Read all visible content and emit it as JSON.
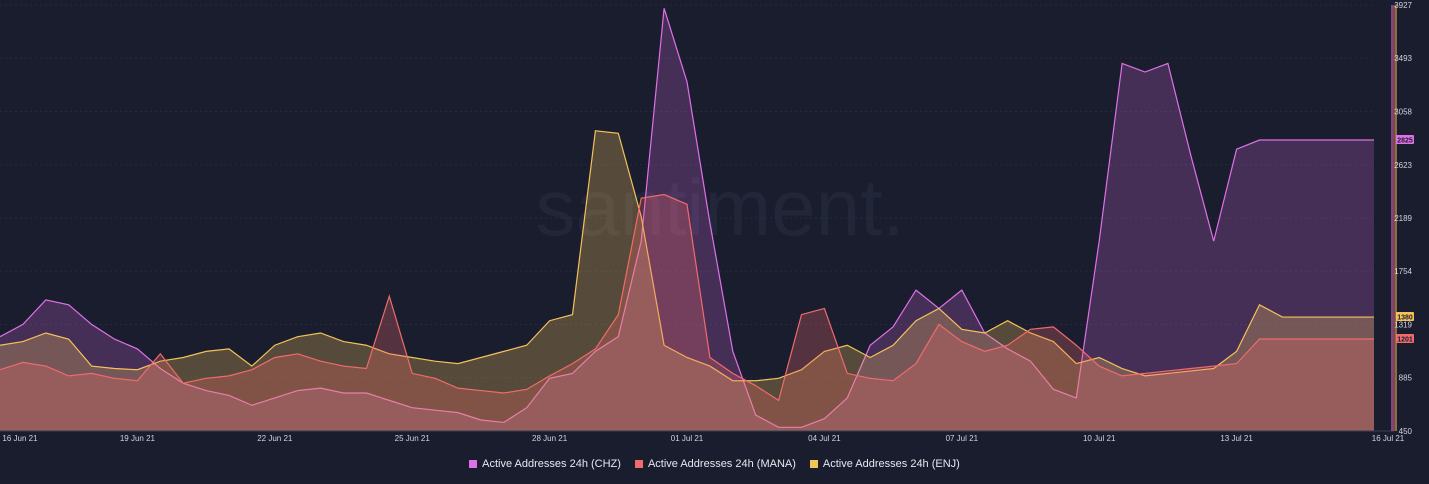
{
  "chart_data": {
    "type": "area",
    "watermark": "santiment.",
    "x_ticks": [
      "16 Jun 21",
      "19 Jun 21",
      "22 Jun 21",
      "25 Jun 21",
      "28 Jun 21",
      "01 Jul 21",
      "04 Jul 21",
      "07 Jul 21",
      "10 Jul 21",
      "13 Jul 21",
      "16 Jul 21"
    ],
    "y_ticks": [
      450,
      885,
      1319,
      1754,
      2189,
      2623,
      3058,
      3493,
      3927
    ],
    "ylim": [
      450,
      3927
    ],
    "legend_position": "bottom",
    "series": [
      {
        "name": "Active Addresses 24h (CHZ)",
        "color": "#e070e8",
        "last_value_label": "2825",
        "x": [
          0,
          0.5,
          1,
          1.5,
          2,
          2.5,
          3,
          3.5,
          4,
          4.5,
          5,
          5.5,
          6,
          6.5,
          7,
          7.5,
          8,
          8.5,
          9,
          9.5,
          10,
          10.5,
          11,
          11.5,
          12,
          12.5,
          13,
          13.5,
          14,
          14.5,
          15,
          15.5,
          16,
          16.5,
          17,
          17.5,
          18,
          18.5,
          19,
          19.5,
          20,
          20.5,
          21,
          21.5,
          22,
          22.5,
          23,
          23.5,
          24,
          24.5,
          25,
          25.5,
          26,
          26.5,
          27,
          27.5,
          28,
          28.5,
          29,
          29.5,
          30
        ],
        "values": [
          1220,
          1320,
          1520,
          1480,
          1320,
          1200,
          1120,
          960,
          840,
          780,
          740,
          660,
          720,
          780,
          800,
          760,
          760,
          700,
          640,
          620,
          600,
          540,
          520,
          640,
          880,
          920,
          1100,
          1220,
          2000,
          3900,
          3300,
          2150,
          1100,
          580,
          480,
          480,
          550,
          720,
          1150,
          1300,
          1600,
          1450,
          1600,
          1250,
          1120,
          1020,
          790,
          720,
          2000,
          3450,
          3380,
          3450,
          2700,
          2000,
          2750,
          2825,
          2825,
          2825,
          2825,
          2825,
          2825
        ]
      },
      {
        "name": "Active Addresses 24h (MANA)",
        "color": "#f06b6b",
        "last_value_label": "1201",
        "x": [
          0,
          0.5,
          1,
          1.5,
          2,
          2.5,
          3,
          3.5,
          4,
          4.5,
          5,
          5.5,
          6,
          6.5,
          7,
          7.5,
          8,
          8.5,
          9,
          9.5,
          10,
          10.5,
          11,
          11.5,
          12,
          12.5,
          13,
          13.5,
          14,
          14.5,
          15,
          15.5,
          16,
          16.5,
          17,
          17.5,
          18,
          18.5,
          19,
          19.5,
          20,
          20.5,
          21,
          21.5,
          22,
          22.5,
          23,
          23.5,
          24,
          24.5,
          25,
          25.5,
          26,
          26.5,
          27,
          27.5,
          28,
          28.5,
          29,
          29.5,
          30
        ],
        "values": [
          950,
          1010,
          980,
          900,
          920,
          880,
          860,
          1080,
          840,
          880,
          900,
          950,
          1050,
          1080,
          1020,
          980,
          960,
          1550,
          920,
          880,
          800,
          780,
          760,
          790,
          900,
          1000,
          1120,
          1400,
          2350,
          2380,
          2300,
          1050,
          920,
          820,
          700,
          1400,
          1450,
          920,
          880,
          860,
          1000,
          1320,
          1180,
          1100,
          1150,
          1280,
          1300,
          1150,
          980,
          900,
          920,
          940,
          960,
          980,
          1000,
          1201,
          1201,
          1201,
          1201,
          1201,
          1201
        ]
      },
      {
        "name": "Active Addresses 24h (ENJ)",
        "color": "#f5c25a",
        "last_value_label": "1380",
        "x": [
          0,
          0.5,
          1,
          1.5,
          2,
          2.5,
          3,
          3.5,
          4,
          4.5,
          5,
          5.5,
          6,
          6.5,
          7,
          7.5,
          8,
          8.5,
          9,
          9.5,
          10,
          10.5,
          11,
          11.5,
          12,
          12.5,
          13,
          13.5,
          14,
          14.5,
          15,
          15.5,
          16,
          16.5,
          17,
          17.5,
          18,
          18.5,
          19,
          19.5,
          20,
          20.5,
          21,
          21.5,
          22,
          22.5,
          23,
          23.5,
          24,
          24.5,
          25,
          25.5,
          26,
          26.5,
          27,
          27.5,
          28,
          28.5,
          29,
          29.5,
          30
        ],
        "values": [
          1150,
          1180,
          1250,
          1200,
          980,
          960,
          950,
          1020,
          1050,
          1100,
          1120,
          980,
          1150,
          1220,
          1250,
          1180,
          1150,
          1080,
          1050,
          1020,
          1000,
          1050,
          1100,
          1150,
          1350,
          1400,
          2900,
          2880,
          2200,
          1150,
          1050,
          980,
          860,
          860,
          880,
          950,
          1100,
          1150,
          1050,
          1150,
          1350,
          1450,
          1280,
          1250,
          1350,
          1250,
          1180,
          1000,
          1050,
          960,
          900,
          920,
          940,
          960,
          1100,
          1480,
          1380,
          1380,
          1380,
          1380,
          1380
        ]
      }
    ]
  },
  "legend": [
    {
      "label": "Active Addresses 24h (CHZ)",
      "color": "#e070e8"
    },
    {
      "label": "Active Addresses 24h (MANA)",
      "color": "#f06b6b"
    },
    {
      "label": "Active Addresses 24h (ENJ)",
      "color": "#f5c25a"
    }
  ]
}
